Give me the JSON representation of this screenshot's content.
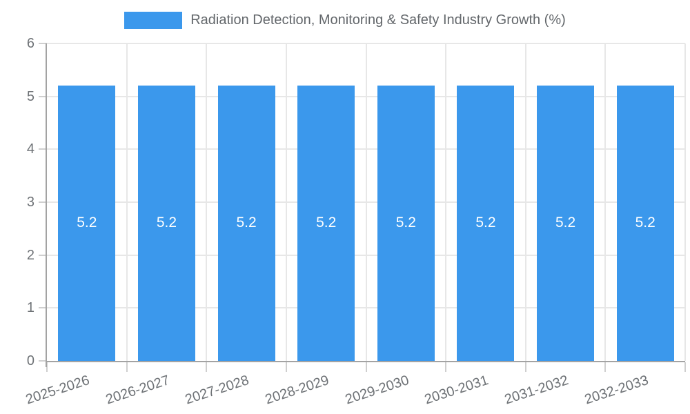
{
  "chart_data": {
    "type": "bar",
    "title": "Radiation Detection, Monitoring & Safety Industry Growth (%)",
    "categories": [
      "2025-2026",
      "2026-2027",
      "2027-2028",
      "2028-2029",
      "2029-2030",
      "2030-2031",
      "2031-2032",
      "2032-2033"
    ],
    "values": [
      5.2,
      5.2,
      5.2,
      5.2,
      5.2,
      5.2,
      5.2,
      5.2
    ],
    "value_labels": [
      "5.2",
      "5.2",
      "5.2",
      "5.2",
      "5.2",
      "5.2",
      "5.2",
      "5.2"
    ],
    "xlabel": "",
    "ylabel": "",
    "ylim": [
      0,
      6
    ],
    "yticks": [
      0,
      1,
      2,
      3,
      4,
      5,
      6
    ],
    "grid": true,
    "legend_position": "top",
    "value_labels_inside_bars": true
  },
  "colors": {
    "bar": "#3B98EC",
    "value_label": "#FFFFFF",
    "title_text": "#63676B",
    "axis_text": "#6E7276",
    "grid_line": "#E7E7E7",
    "axis_line": "#A3A3A3",
    "tick_mark": "#CFCFCF",
    "background": "#FFFFFF"
  }
}
